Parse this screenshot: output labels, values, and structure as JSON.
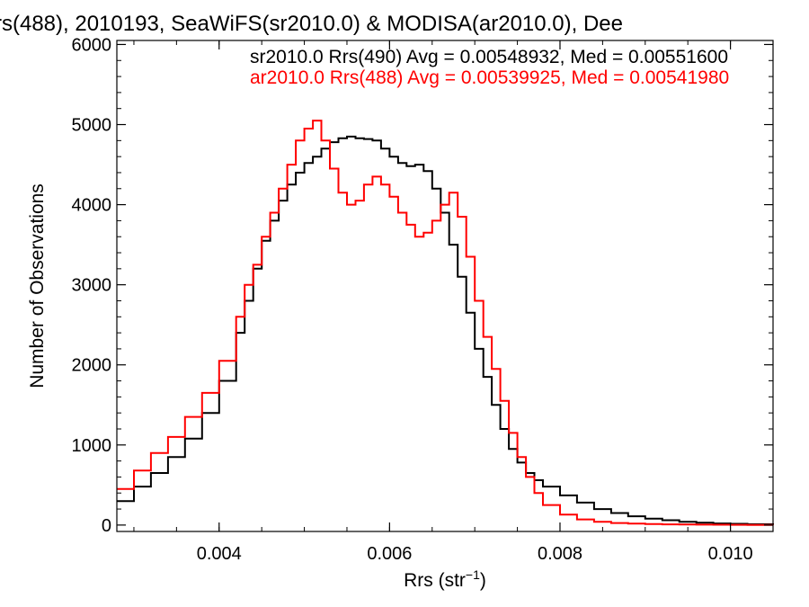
{
  "chart_data": {
    "type": "line",
    "step": true,
    "title": "rs(488), 2010193, SeaWiFS(sr2010.0) & MODISA(ar2010.0), Dee",
    "xlabel": "Rrs (str",
    "xlabel_sup": "−1",
    "xlabel_end": ")",
    "ylabel": "Number of Observations",
    "xlim": [
      0.0028,
      0.0105
    ],
    "ylim": [
      -80,
      6050
    ],
    "xticks": [
      0.004,
      0.006,
      0.008,
      0.01
    ],
    "xtick_labels": [
      "0.004",
      "0.006",
      "0.008",
      "0.010"
    ],
    "yticks": [
      0,
      1000,
      2000,
      3000,
      4000,
      5000,
      6000
    ],
    "ytick_labels": [
      "0",
      "1000",
      "2000",
      "3000",
      "4000",
      "5000",
      "6000"
    ],
    "grid": false,
    "legend_position": "top-right",
    "series": [
      {
        "name": "sr2010.0 Rrs(490) Avg = 0.00548932, Med = 0.00551600",
        "color": "#000000",
        "x": [
          0.0028,
          0.003,
          0.0032,
          0.0034,
          0.0036,
          0.0038,
          0.004,
          0.0042,
          0.0043,
          0.0044,
          0.0045,
          0.0046,
          0.0047,
          0.0048,
          0.0049,
          0.005,
          0.0051,
          0.0052,
          0.0053,
          0.0054,
          0.0055,
          0.0056,
          0.0057,
          0.0058,
          0.0059,
          0.006,
          0.0061,
          0.0062,
          0.0063,
          0.0064,
          0.0065,
          0.0066,
          0.0067,
          0.0068,
          0.0069,
          0.007,
          0.0071,
          0.0072,
          0.0073,
          0.0074,
          0.0075,
          0.0076,
          0.0077,
          0.0078,
          0.008,
          0.0082,
          0.0084,
          0.0086,
          0.0088,
          0.009,
          0.0092,
          0.0094,
          0.0096,
          0.0098,
          0.01,
          0.0102,
          0.0105
        ],
        "y": [
          300,
          480,
          650,
          850,
          1080,
          1400,
          1800,
          2400,
          2800,
          3200,
          3550,
          3800,
          4050,
          4250,
          4400,
          4520,
          4600,
          4700,
          4780,
          4830,
          4850,
          4830,
          4820,
          4800,
          4700,
          4600,
          4520,
          4480,
          4500,
          4420,
          4200,
          3900,
          3500,
          3100,
          2650,
          2200,
          1850,
          1500,
          1200,
          950,
          780,
          650,
          560,
          480,
          370,
          280,
          200,
          150,
          110,
          80,
          60,
          40,
          30,
          20,
          15,
          10,
          5
        ]
      },
      {
        "name": "ar2010.0 Rrs(488) Avg = 0.00539925, Med = 0.00541980",
        "color": "#ff0000",
        "x": [
          0.0028,
          0.003,
          0.0032,
          0.0034,
          0.0036,
          0.0038,
          0.004,
          0.0042,
          0.0043,
          0.0044,
          0.0045,
          0.0046,
          0.0047,
          0.0048,
          0.0049,
          0.005,
          0.0051,
          0.0052,
          0.0053,
          0.0054,
          0.0055,
          0.0056,
          0.0057,
          0.0058,
          0.0059,
          0.006,
          0.0061,
          0.0062,
          0.0063,
          0.0064,
          0.0065,
          0.0066,
          0.0067,
          0.0068,
          0.0069,
          0.007,
          0.0071,
          0.0072,
          0.0073,
          0.0074,
          0.0075,
          0.0076,
          0.0077,
          0.0078,
          0.008,
          0.0082,
          0.0084,
          0.0086,
          0.0088,
          0.009,
          0.0092,
          0.0094,
          0.0096,
          0.0098,
          0.01,
          0.0102,
          0.0105
        ],
        "y": [
          450,
          680,
          900,
          1100,
          1350,
          1650,
          2050,
          2600,
          3000,
          3250,
          3600,
          3900,
          4200,
          4500,
          4800,
          4950,
          5050,
          4800,
          4450,
          4150,
          4000,
          4050,
          4250,
          4350,
          4250,
          4100,
          3900,
          3750,
          3600,
          3650,
          3800,
          4000,
          4150,
          3850,
          3350,
          2800,
          2350,
          1950,
          1550,
          1150,
          850,
          600,
          400,
          250,
          130,
          70,
          40,
          25,
          18,
          12,
          9,
          7,
          5,
          4,
          3,
          2,
          1
        ]
      }
    ]
  }
}
